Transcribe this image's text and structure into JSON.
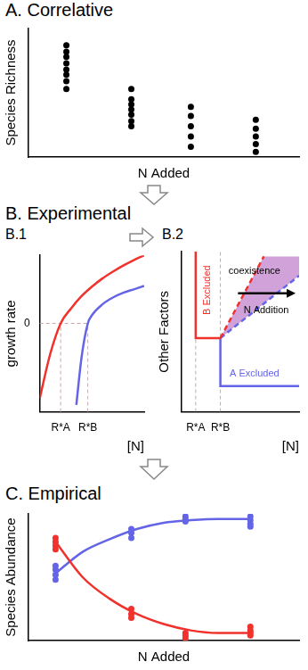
{
  "chart_data": [
    {
      "type": "scatter",
      "title": "A. Correlative",
      "x_label": "N Added",
      "y_label": "Species Richness",
      "xlim": [
        0,
        5
      ],
      "ylim": [
        0,
        10
      ],
      "tick_labels": false,
      "grid": false,
      "series": [
        {
          "color": "#000000",
          "marker": "circle",
          "type": "scatter",
          "x": [
            0.7,
            0.7,
            0.7,
            0.7,
            0.7,
            0.7,
            0.7,
            0.7,
            1.9,
            1.9,
            1.9,
            1.9,
            1.9,
            1.9,
            1.9,
            3.0,
            3.0,
            3.0,
            3.0,
            3.0,
            4.2,
            4.2,
            4.2,
            4.2,
            4.2
          ],
          "values": [
            8.7,
            8.2,
            7.8,
            7.3,
            6.8,
            6.4,
            5.9,
            5.3,
            5.3,
            4.5,
            4.1,
            3.7,
            3.3,
            2.8,
            2.4,
            3.9,
            3.2,
            2.4,
            1.6,
            0.8,
            2.9,
            2.2,
            1.6,
            1.0,
            0.4
          ]
        }
      ]
    },
    {
      "type": "line",
      "title": "B. Experimental",
      "subtitle": "B.1",
      "x_label": "[N]",
      "y_label": "growth rate",
      "xlim": [
        0,
        10
      ],
      "ylim": [
        -1.3,
        1
      ],
      "xticks": [
        {
          "value": 2.0,
          "label": "R*A"
        },
        {
          "value": 4.6,
          "label": "R*B"
        }
      ],
      "yticks": [
        0
      ],
      "grid": true,
      "series": [
        {
          "color": "#f0312c",
          "line_style": "solid",
          "x": [
            0,
            1,
            2,
            3,
            4,
            5,
            6,
            7,
            8,
            9,
            10
          ],
          "values": [
            -1.1,
            -0.45,
            0,
            0.22,
            0.4,
            0.54,
            0.66,
            0.76,
            0.85,
            0.93,
            1.0
          ]
        },
        {
          "color": "#6464e6",
          "line_style": "solid",
          "x": [
            3.5,
            4,
            4.6,
            5,
            6,
            7,
            8,
            9,
            10
          ],
          "values": [
            -1.2,
            -0.5,
            0,
            0.12,
            0.28,
            0.38,
            0.45,
            0.5,
            0.55
          ]
        }
      ]
    },
    {
      "type": "line",
      "subtitle": "B.2",
      "x_label": "[N]",
      "y_label": "Other Factors",
      "xlim": [
        0,
        10
      ],
      "ylim": [
        0,
        10
      ],
      "xticks": [
        {
          "value": 1.2,
          "label": "R*A"
        },
        {
          "value": 3.3,
          "label": "R*B"
        }
      ],
      "yticks": [],
      "tick_labels": "x",
      "grid": true,
      "region": {
        "color": "#c48bd0",
        "x": [
          3.3,
          7.0,
          10,
          10
        ],
        "values": [
          4.6,
          9.7,
          9.7,
          8.5
        ]
      },
      "series": [
        {
          "color": "#f0312c",
          "line_style": "solid",
          "x": [
            1.2,
            1.2,
            3.3
          ],
          "values": [
            10,
            4.6,
            4.6
          ]
        },
        {
          "color": "#f0312c",
          "line_style": "dashed",
          "x": [
            3.3,
            7.0
          ],
          "values": [
            4.6,
            9.7
          ]
        },
        {
          "color": "#6464e6",
          "line_style": "solid",
          "x": [
            3.3,
            3.3,
            10
          ],
          "values": [
            4.6,
            1.6,
            1.6
          ]
        },
        {
          "color": "#6464e6",
          "line_style": "dashed",
          "x": [
            3.3,
            10
          ],
          "values": [
            4.6,
            8.5
          ]
        }
      ],
      "annotations": [
        {
          "text": "B Excluded",
          "color": "#f0312c"
        },
        {
          "text": "A Excluded",
          "color": "#6464e6"
        },
        {
          "text": "coexistence",
          "color": "#000000"
        },
        {
          "text": "N Addition",
          "color": "#000000"
        }
      ]
    },
    {
      "type": "scatter",
      "title": "C. Empirical",
      "x_label": "N Added",
      "y_label": "Species Abundance",
      "xlim": [
        0,
        5
      ],
      "ylim": [
        0,
        10
      ],
      "tick_labels": false,
      "grid": false,
      "series": [
        {
          "color": "#f0312c",
          "marker": "circle",
          "type": "scatter",
          "x": [
            0.5,
            0.5,
            0.5,
            0.5,
            1.9,
            1.9,
            1.9,
            2.9,
            2.9,
            2.9,
            4.1,
            4.1,
            4.1,
            4.1
          ],
          "values": [
            8.1,
            7.8,
            7.5,
            7.2,
            2.5,
            2.1,
            1.8,
            0.6,
            0.4,
            0.2,
            1.1,
            0.8,
            0.6,
            0.4
          ]
        },
        {
          "color": "#6464e6",
          "marker": "circle",
          "type": "scatter",
          "x": [
            0.5,
            0.5,
            0.5,
            0.5,
            1.9,
            1.9,
            1.9,
            2.9,
            2.9,
            2.9,
            4.1,
            4.1,
            4.1,
            4.1
          ],
          "values": [
            5.9,
            5.6,
            5.2,
            4.8,
            8.8,
            8.5,
            8.1,
            9.8,
            9.6,
            9.4,
            9.8,
            9.5,
            9.2,
            9.0
          ]
        },
        {
          "color": "#f0312c",
          "type": "line",
          "line_style": "solid",
          "x": [
            0.5,
            1,
            1.5,
            2,
            2.5,
            3,
            3.5,
            4.1
          ],
          "values": [
            7.8,
            5.0,
            3.3,
            2.1,
            1.3,
            0.8,
            0.6,
            0.6
          ]
        },
        {
          "color": "#6464e6",
          "type": "line",
          "line_style": "solid",
          "x": [
            0.5,
            1,
            1.5,
            2,
            2.5,
            3,
            3.5,
            4.1
          ],
          "values": [
            5.3,
            7.0,
            8.0,
            8.8,
            9.3,
            9.5,
            9.6,
            9.6
          ]
        }
      ]
    }
  ]
}
